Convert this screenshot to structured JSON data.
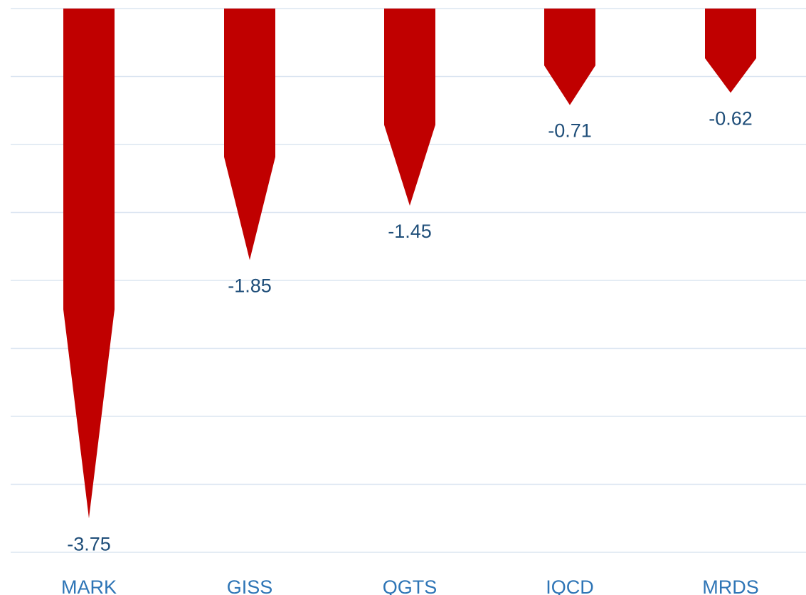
{
  "chart_data": {
    "type": "bar",
    "orientation": "downward",
    "categories": [
      "MARK",
      "GISS",
      "QGTS",
      "IQCD",
      "MRDS"
    ],
    "values": [
      -3.75,
      -1.85,
      -1.45,
      -0.71,
      -0.62
    ],
    "value_labels": [
      "-3.75",
      "-1.85",
      "-1.45",
      "-0.71",
      "-0.62"
    ],
    "title": "",
    "xlabel": "",
    "ylabel": "",
    "ylim": [
      -4,
      0
    ],
    "grid": true,
    "y_gridlines": [
      0,
      -0.5,
      -1,
      -1.5,
      -2,
      -2.5,
      -3,
      -3.5,
      -4
    ],
    "legend": "none",
    "bar_color": "#c00000",
    "label_color": "#1f4e79",
    "category_color": "#2e75b6",
    "grid_color": "#dbe5f1"
  }
}
